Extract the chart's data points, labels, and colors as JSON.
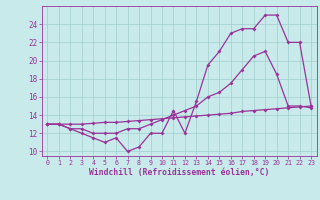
{
  "line1": [
    13,
    13,
    12.5,
    12,
    11.5,
    11,
    11.5,
    10,
    10.5,
    12,
    12,
    14.5,
    12,
    15.5,
    19.5,
    21,
    23,
    23.5,
    23.5,
    25,
    25,
    22,
    22,
    15
  ],
  "line2": [
    13,
    13,
    12.5,
    12.5,
    12,
    12,
    12,
    12.5,
    12.5,
    13,
    13.5,
    14,
    14.5,
    15,
    16,
    16.5,
    17.5,
    19,
    20.5,
    21,
    18.5,
    15,
    15,
    14.8
  ],
  "line3": [
    13,
    13,
    13,
    13,
    13.1,
    13.2,
    13.2,
    13.3,
    13.4,
    13.5,
    13.6,
    13.7,
    13.8,
    13.9,
    14.0,
    14.1,
    14.2,
    14.4,
    14.5,
    14.6,
    14.7,
    14.8,
    14.9,
    15.0
  ],
  "color": "#993399",
  "bg_color": "#c8eaea",
  "grid_color": "#a0cccc",
  "xlabel": "Windchill (Refroidissement éolien,°C)",
  "yticks": [
    10,
    12,
    14,
    16,
    18,
    20,
    22,
    24
  ],
  "xticks": [
    0,
    1,
    2,
    3,
    4,
    5,
    6,
    7,
    8,
    9,
    10,
    11,
    12,
    13,
    14,
    15,
    16,
    17,
    18,
    19,
    20,
    21,
    22,
    23
  ],
  "ylim": [
    9.5,
    26.0
  ],
  "xlim": [
    -0.5,
    23.5
  ]
}
